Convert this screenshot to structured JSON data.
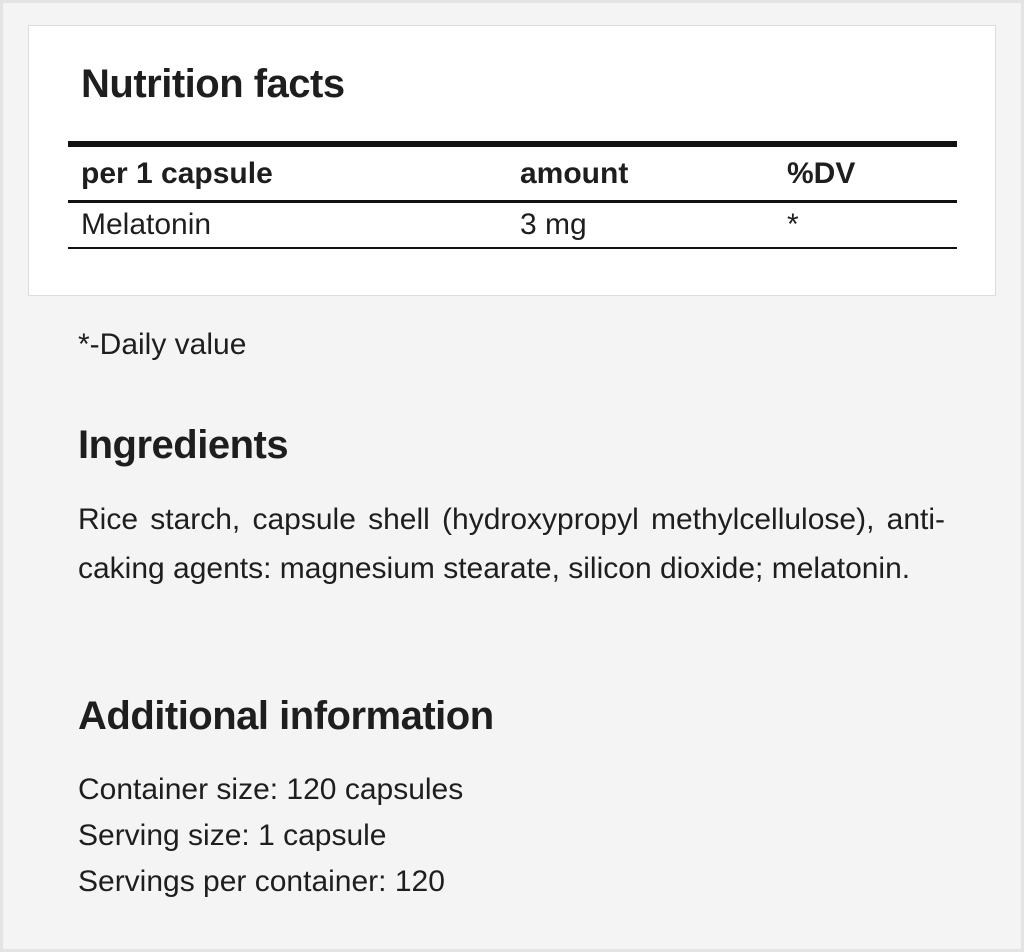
{
  "nutrition": {
    "title": "Nutrition facts",
    "headers": [
      "per 1 capsule",
      "amount",
      "%DV"
    ],
    "rows": [
      [
        "Melatonin",
        "3 mg",
        "*"
      ]
    ]
  },
  "footnote": "*-Daily value",
  "ingredients": {
    "title": "Ingredients",
    "text": "Rice starch, capsule shell (hydroxypropyl methylcellulose), anti-caking agents: magnesium stearate, silicon dioxide; melatonin."
  },
  "additional": {
    "title": "Additional information",
    "lines": [
      "Container size: 120 capsules",
      "Serving size: 1 capsule",
      "Servings per container: 120"
    ]
  }
}
